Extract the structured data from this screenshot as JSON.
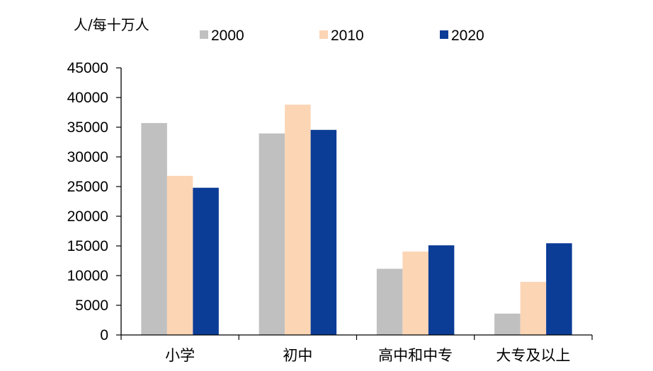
{
  "chart_data": {
    "type": "bar",
    "unit_label": "人/每十万人",
    "categories": [
      "小学",
      "初中",
      "高中和中专",
      "大专及以上"
    ],
    "series": [
      {
        "name": "2000",
        "color": "#c0c0c0",
        "values": [
          35700,
          33950,
          11150,
          3600
        ]
      },
      {
        "name": "2010",
        "color": "#fcd5b5",
        "values": [
          26800,
          38800,
          14050,
          8950
        ]
      },
      {
        "name": "2020",
        "color": "#0b3c96",
        "values": [
          24800,
          34550,
          15100,
          15450
        ]
      }
    ],
    "ylim": [
      0,
      45000
    ],
    "yticks": [
      0,
      5000,
      10000,
      15000,
      20000,
      25000,
      30000,
      35000,
      40000,
      45000
    ],
    "grid": false,
    "legend_position": "top"
  }
}
